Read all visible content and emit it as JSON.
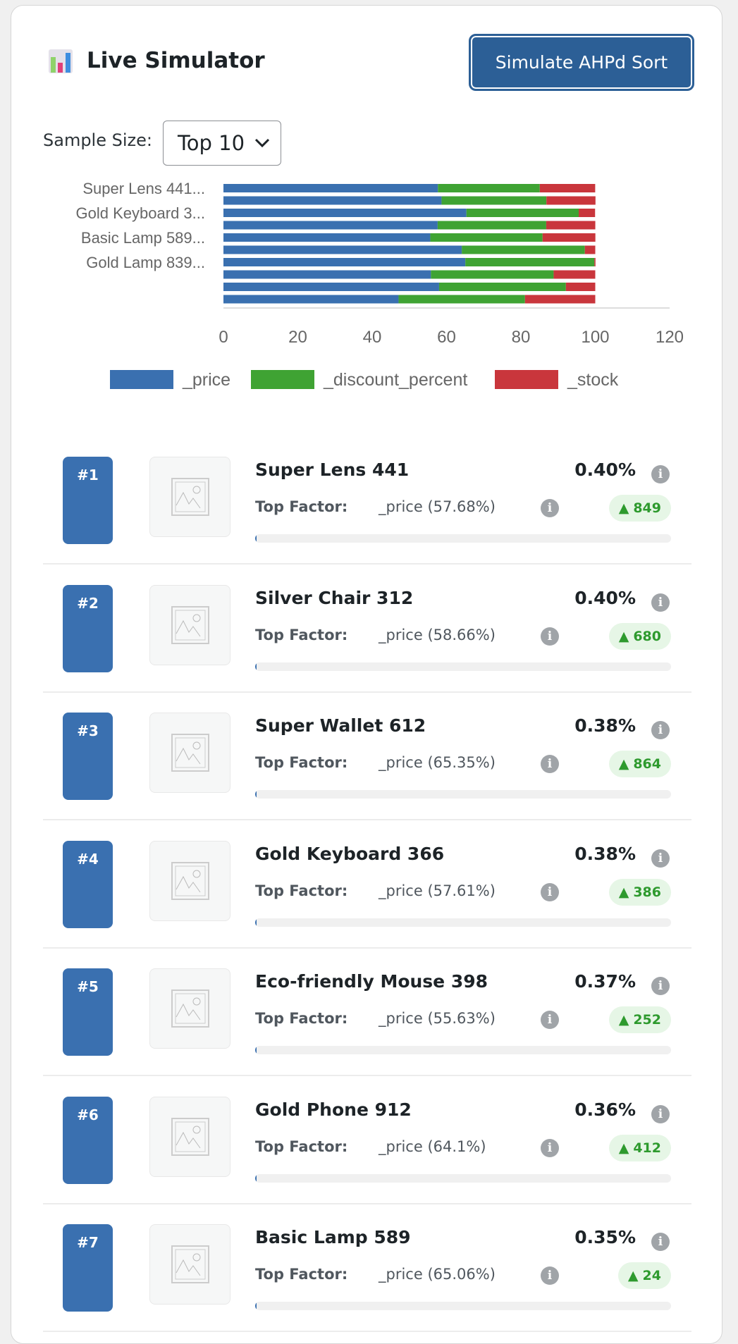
{
  "header": {
    "title": "Live Simulator",
    "icon": "bar-chart-icon",
    "button": "Simulate AHPd Sort"
  },
  "sample": {
    "label": "Sample Size:",
    "selected": "Top 10"
  },
  "colors": {
    "price": "#3a70b0",
    "discount": "#3fa333",
    "stock": "#c9363c",
    "badge_text": "#2e9a2e"
  },
  "chart_data": {
    "type": "bar",
    "orientation": "horizontal",
    "stacked": true,
    "tick_labels": [
      "Super Lens 441...",
      "Gold Keyboard 3...",
      "Basic Lamp 589...",
      "Gold Lamp 839..."
    ],
    "xlim": [
      0,
      120
    ],
    "xticks": [
      "0",
      "20",
      "40",
      "60",
      "80",
      "100",
      "120"
    ],
    "legend_position": "bottom",
    "grid": false,
    "series": [
      {
        "name": "_price",
        "values": [
          57.68,
          58.66,
          65.35,
          57.61,
          55.63,
          64.1,
          65.06,
          55.8,
          58.0,
          47.1
        ]
      },
      {
        "name": "_discount_percent",
        "values": [
          27.4,
          28.2,
          30.2,
          29.2,
          30.2,
          33.1,
          34.7,
          33.0,
          34.1,
          34.0
        ]
      },
      {
        "name": "_stock",
        "values": [
          14.9,
          13.2,
          4.4,
          13.2,
          14.2,
          2.8,
          0.3,
          11.2,
          7.9,
          18.9
        ]
      }
    ]
  },
  "list": {
    "top_factor_label": "Top Factor:",
    "items": [
      {
        "rank": "#1",
        "name": "Super Lens 441",
        "score": "0.40%",
        "factor": "_price (57.68%)",
        "change": "849",
        "progress": 0.4
      },
      {
        "rank": "#2",
        "name": "Silver Chair 312",
        "score": "0.40%",
        "factor": "_price (58.66%)",
        "change": "680",
        "progress": 0.4
      },
      {
        "rank": "#3",
        "name": "Super Wallet 612",
        "score": "0.38%",
        "factor": "_price (65.35%)",
        "change": "864",
        "progress": 0.38
      },
      {
        "rank": "#4",
        "name": "Gold Keyboard 366",
        "score": "0.38%",
        "factor": "_price (57.61%)",
        "change": "386",
        "progress": 0.38
      },
      {
        "rank": "#5",
        "name": "Eco-friendly Mouse 398",
        "score": "0.37%",
        "factor": "_price (55.63%)",
        "change": "252",
        "progress": 0.37
      },
      {
        "rank": "#6",
        "name": "Gold Phone 912",
        "score": "0.36%",
        "factor": "_price (64.1%)",
        "change": "412",
        "progress": 0.36
      },
      {
        "rank": "#7",
        "name": "Basic Lamp 589",
        "score": "0.35%",
        "factor": "_price (65.06%)",
        "change": "24",
        "progress": 0.35
      }
    ]
  }
}
